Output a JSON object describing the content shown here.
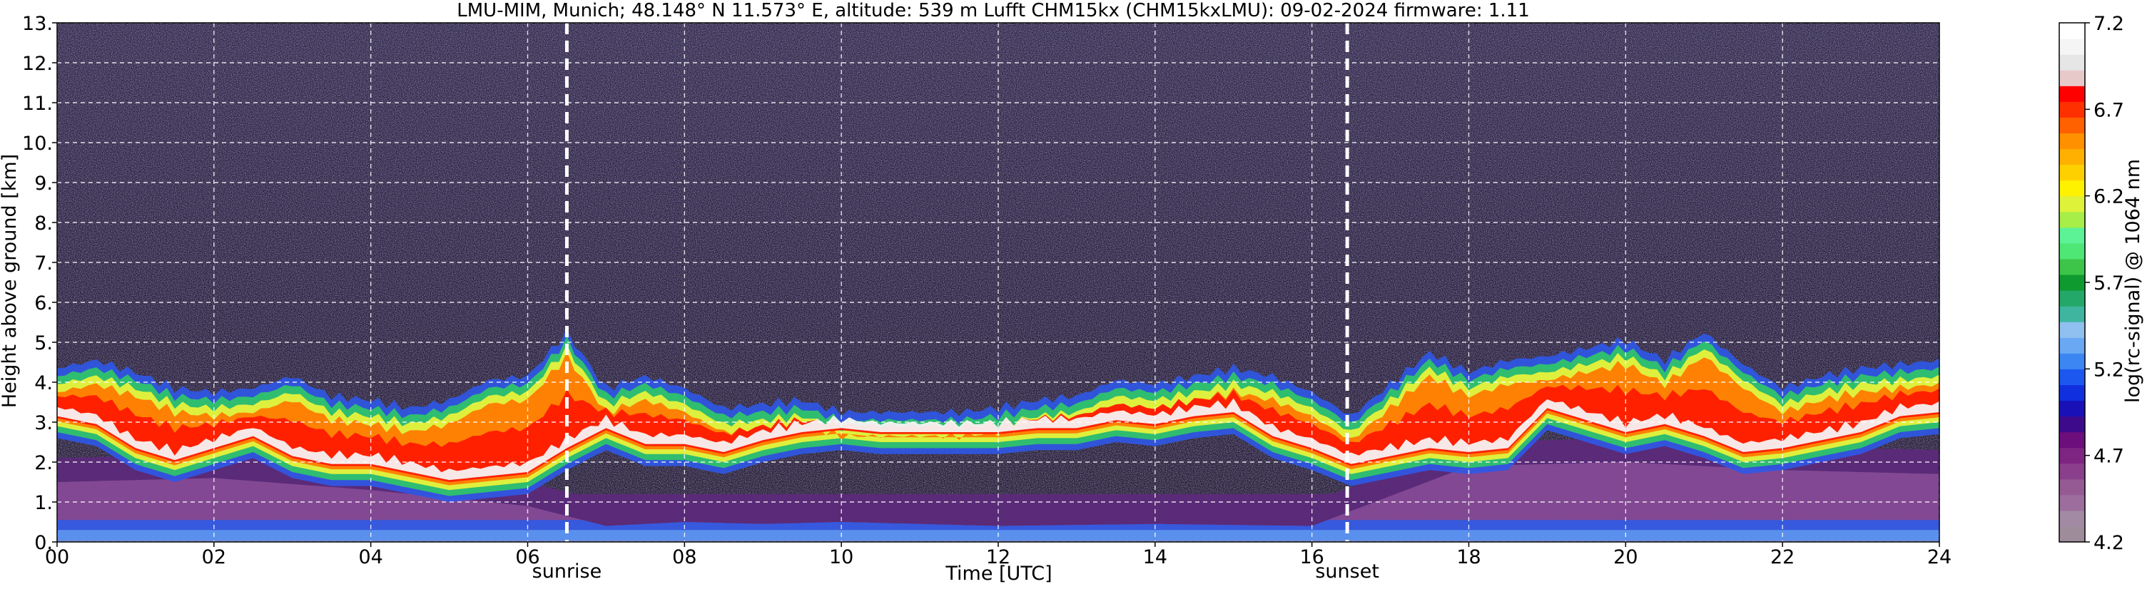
{
  "chart_data": {
    "type": "heatmap",
    "title": "LMU-MIM, Munich; 48.148° N 11.573° E, altitude: 539 m    Lufft CHM15kx (CHM15kxLMU): 09-02-2024    firmware: 1.11",
    "xlabel": "Time [UTC]",
    "ylabel": "Height above ground [km]",
    "xlim": [
      0,
      24
    ],
    "ylim": [
      0,
      13
    ],
    "x_ticks": [
      "00",
      "02",
      "04",
      "06",
      "08",
      "10",
      "12",
      "14",
      "16",
      "18",
      "20",
      "22",
      "24"
    ],
    "y_ticks": [
      "0.",
      "1.",
      "2.",
      "3.",
      "4.",
      "5.",
      "6.",
      "7.",
      "8.",
      "9.",
      "10.",
      "11.",
      "12.",
      "13."
    ],
    "grid": true,
    "annotations": [
      {
        "label": "sunrise",
        "time": 6.5
      },
      {
        "label": "sunset",
        "time": 16.45
      }
    ],
    "colorbar": {
      "label": "log(rc-signal) @ 1064 nm",
      "range": [
        4.2,
        7.2
      ],
      "ticks": [
        "4.2",
        "4.7",
        "5.2",
        "5.7",
        "6.2",
        "6.7",
        "7.2"
      ],
      "colors": [
        "#9e8c9b",
        "#a38aa4",
        "#9d6e9d",
        "#955a93",
        "#8a3f8c",
        "#7e2582",
        "#6d0e7d",
        "#3d0a8c",
        "#1a10b8",
        "#1030e0",
        "#1c58f0",
        "#3c86f3",
        "#6aa8f3",
        "#8fc0ef",
        "#3fb5a0",
        "#23a86a",
        "#0f9a2f",
        "#3dc54a",
        "#4ee675",
        "#5cf296",
        "#a7ee49",
        "#dff23a",
        "#fff200",
        "#ffd000",
        "#ffb000",
        "#ff9000",
        "#ff6000",
        "#ff3000",
        "#ff0000",
        "#e8c9c9",
        "#e6e6e6",
        "#f5f5f5",
        "#ffffff"
      ]
    },
    "cloud_top_km": [
      [
        0,
        4.1
      ],
      [
        0.5,
        4.3
      ],
      [
        1,
        4.0
      ],
      [
        1.5,
        3.6
      ],
      [
        2,
        3.5
      ],
      [
        2.5,
        3.6
      ],
      [
        3,
        3.9
      ],
      [
        3.5,
        3.4
      ],
      [
        4,
        3.3
      ],
      [
        4.5,
        3.1
      ],
      [
        5,
        3.3
      ],
      [
        5.5,
        3.8
      ],
      [
        6,
        3.9
      ],
      [
        6.5,
        5.0
      ],
      [
        7,
        3.6
      ],
      [
        7.5,
        3.9
      ],
      [
        8,
        3.6
      ],
      [
        8.5,
        3.1
      ],
      [
        9,
        3.2
      ],
      [
        9.5,
        3.3
      ],
      [
        10,
        3.0
      ],
      [
        10.5,
        3.0
      ],
      [
        11,
        3.0
      ],
      [
        11.5,
        3.0
      ],
      [
        12,
        3.1
      ],
      [
        12.5,
        3.3
      ],
      [
        13,
        3.4
      ],
      [
        13.5,
        3.8
      ],
      [
        14,
        3.7
      ],
      [
        14.5,
        3.9
      ],
      [
        15,
        4.1
      ],
      [
        15.5,
        3.9
      ],
      [
        16,
        3.5
      ],
      [
        16.5,
        2.9
      ],
      [
        17,
        3.7
      ],
      [
        17.5,
        4.5
      ],
      [
        18,
        4.0
      ],
      [
        18.5,
        4.3
      ],
      [
        19,
        4.4
      ],
      [
        19.5,
        4.6
      ],
      [
        20,
        4.8
      ],
      [
        20.5,
        4.3
      ],
      [
        21,
        5.0
      ],
      [
        21.5,
        4.2
      ],
      [
        22,
        3.6
      ],
      [
        22.5,
        3.9
      ],
      [
        23,
        4.1
      ],
      [
        23.5,
        4.2
      ],
      [
        24,
        4.3
      ]
    ],
    "cloud_core_km": [
      [
        0,
        3.2
      ],
      [
        0.5,
        3.0
      ],
      [
        1,
        2.4
      ],
      [
        1.5,
        2.1
      ],
      [
        2,
        2.4
      ],
      [
        2.5,
        2.7
      ],
      [
        3,
        2.2
      ],
      [
        3.5,
        2.0
      ],
      [
        4,
        2.0
      ],
      [
        4.5,
        1.8
      ],
      [
        5,
        1.6
      ],
      [
        5.5,
        1.7
      ],
      [
        6,
        1.8
      ],
      [
        6.5,
        2.4
      ],
      [
        7,
        2.9
      ],
      [
        7.5,
        2.5
      ],
      [
        8,
        2.5
      ],
      [
        8.5,
        2.3
      ],
      [
        9,
        2.6
      ],
      [
        9.5,
        2.8
      ],
      [
        10,
        2.9
      ],
      [
        10.5,
        2.8
      ],
      [
        11,
        2.8
      ],
      [
        11.5,
        2.8
      ],
      [
        12,
        2.8
      ],
      [
        12.5,
        2.9
      ],
      [
        13,
        2.9
      ],
      [
        13.5,
        3.1
      ],
      [
        14,
        3.0
      ],
      [
        14.5,
        3.2
      ],
      [
        15,
        3.3
      ],
      [
        15.5,
        2.7
      ],
      [
        16,
        2.4
      ],
      [
        16.5,
        2.0
      ],
      [
        17,
        2.2
      ],
      [
        17.5,
        2.4
      ],
      [
        18,
        2.3
      ],
      [
        18.5,
        2.4
      ],
      [
        19,
        3.4
      ],
      [
        19.5,
        3.1
      ],
      [
        20,
        2.8
      ],
      [
        20.5,
        3.0
      ],
      [
        21,
        2.7
      ],
      [
        21.5,
        2.3
      ],
      [
        22,
        2.4
      ],
      [
        22.5,
        2.6
      ],
      [
        23,
        2.8
      ],
      [
        23.5,
        3.2
      ],
      [
        24,
        3.3
      ]
    ],
    "boundary_layer_top_km": [
      [
        0,
        1.5
      ],
      [
        2,
        1.6
      ],
      [
        4,
        1.3
      ],
      [
        6,
        0.9
      ],
      [
        7,
        0.4
      ],
      [
        8,
        0.5
      ],
      [
        9,
        0.45
      ],
      [
        10,
        0.5
      ],
      [
        12,
        0.4
      ],
      [
        14,
        0.45
      ],
      [
        16,
        0.4
      ],
      [
        18,
        1.9
      ],
      [
        20,
        2.0
      ],
      [
        22,
        1.8
      ],
      [
        24,
        1.7
      ]
    ]
  }
}
